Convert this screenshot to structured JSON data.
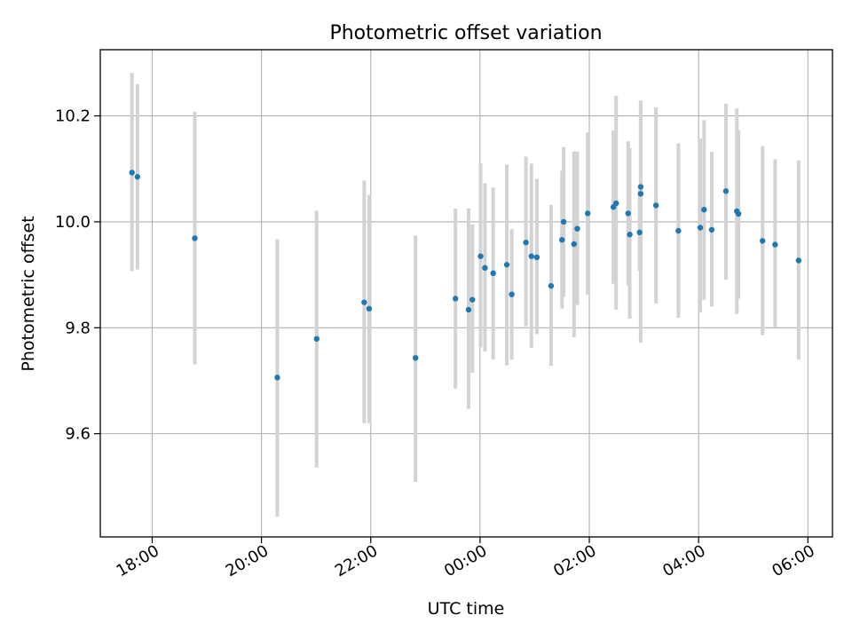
{
  "chart_data": {
    "type": "scatter",
    "title": "Photometric offset variation",
    "xlabel": "UTC time",
    "ylabel": "Photometric offset",
    "x_unit": "hours since 18:00 UTC",
    "xlim": [
      -0.95,
      12.45
    ],
    "ylim": [
      9.405,
      10.325
    ],
    "grid": true,
    "x_ticks": [
      {
        "value": 0,
        "label": "18:00"
      },
      {
        "value": 2,
        "label": "20:00"
      },
      {
        "value": 4,
        "label": "22:00"
      },
      {
        "value": 6,
        "label": "00:00"
      },
      {
        "value": 8,
        "label": "02:00"
      },
      {
        "value": 10,
        "label": "04:00"
      },
      {
        "value": 12,
        "label": "06:00"
      }
    ],
    "y_ticks": [
      {
        "value": 9.6,
        "label": "9.6"
      },
      {
        "value": 9.8,
        "label": "9.8"
      },
      {
        "value": 10.0,
        "label": "10.0"
      },
      {
        "value": 10.2,
        "label": "10.2"
      }
    ],
    "series": [
      {
        "name": "offset",
        "color": "#1f77b4",
        "errorbar_color": "#d3d3d3",
        "x": [
          -0.37,
          -0.27,
          0.78,
          2.29,
          3.01,
          3.88,
          3.97,
          4.82,
          5.55,
          5.79,
          5.86,
          6.01,
          6.09,
          6.24,
          6.49,
          6.58,
          6.84,
          6.94,
          7.04,
          7.3,
          7.5,
          7.53,
          7.72,
          7.78,
          7.97,
          8.44,
          8.49,
          8.71,
          8.74,
          8.92,
          8.94,
          8.94,
          9.22,
          9.63,
          10.03,
          10.1,
          10.24,
          10.5,
          10.7,
          10.73,
          11.17,
          11.4,
          11.83
        ],
        "y": [
          10.093,
          10.085,
          9.969,
          9.706,
          9.779,
          9.848,
          9.836,
          9.743,
          9.855,
          9.834,
          9.853,
          9.935,
          9.913,
          9.903,
          9.919,
          9.863,
          9.961,
          9.935,
          9.933,
          9.879,
          9.966,
          10.0,
          9.958,
          9.987,
          10.016,
          10.028,
          10.035,
          10.016,
          9.976,
          9.98,
          10.053,
          10.066,
          10.031,
          9.983,
          9.989,
          10.023,
          9.985,
          10.058,
          10.02,
          10.015,
          9.964,
          9.957,
          9.927
        ],
        "err_low": [
          9.907,
          9.91,
          9.731,
          9.443,
          9.536,
          9.62,
          9.62,
          9.509,
          9.685,
          9.647,
          9.715,
          9.763,
          9.755,
          9.74,
          9.729,
          9.74,
          9.803,
          9.762,
          9.788,
          9.728,
          9.836,
          9.858,
          9.782,
          9.843,
          9.862,
          9.883,
          9.834,
          9.88,
          9.817,
          9.907,
          9.772,
          9.908,
          9.846,
          9.819,
          9.829,
          9.853,
          9.84,
          9.891,
          9.826,
          9.855,
          9.786,
          9.8,
          9.74
        ],
        "err_high": [
          10.281,
          10.26,
          10.208,
          9.967,
          10.021,
          10.078,
          10.051,
          9.974,
          10.025,
          10.025,
          9.995,
          10.11,
          10.073,
          10.065,
          10.108,
          9.986,
          10.123,
          10.11,
          10.081,
          10.032,
          10.096,
          10.141,
          10.133,
          10.133,
          10.169,
          10.172,
          10.238,
          10.152,
          10.139,
          10.06,
          10.229,
          10.227,
          10.216,
          10.148,
          10.157,
          10.192,
          10.132,
          10.223,
          10.214,
          10.173,
          10.143,
          10.118,
          10.116
        ]
      }
    ]
  }
}
